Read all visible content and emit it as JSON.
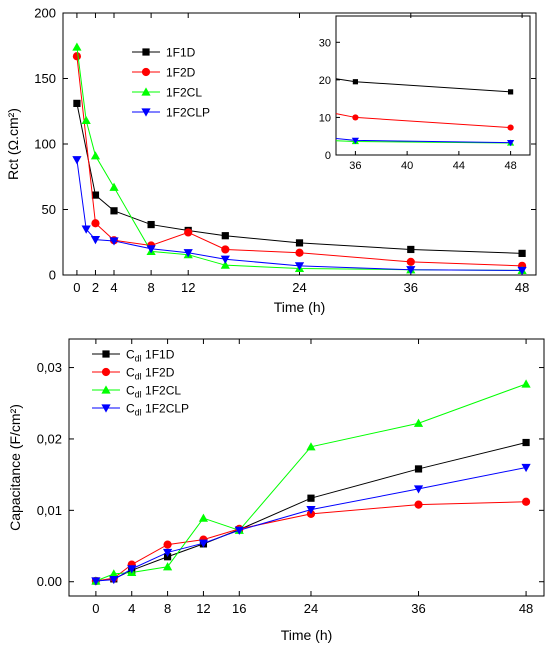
{
  "chart_data": [
    {
      "type": "line",
      "xlabel": "Time (h)",
      "ylabel": "Rct (Ω.cm²)",
      "xlim": [
        -1.5,
        49.5
      ],
      "ylim": [
        0,
        200
      ],
      "xticks": [
        0,
        2,
        4,
        8,
        12,
        24,
        36,
        48
      ],
      "yticks": [
        0,
        50,
        100,
        150,
        200
      ],
      "legend_position": "top-left",
      "series": [
        {
          "name": "1F1D",
          "color": "#000000",
          "marker": "square",
          "x": [
            0,
            2,
            4,
            8,
            12,
            16,
            24,
            36,
            48
          ],
          "y": [
            131,
            61,
            49,
            38.5,
            34,
            30,
            24.5,
            19.5,
            16.5
          ]
        },
        {
          "name": "1F2D",
          "color": "#ff0000",
          "marker": "circle",
          "x": [
            0,
            2,
            4,
            8,
            12,
            16,
            24,
            36,
            48
          ],
          "y": [
            167,
            39.5,
            26.5,
            22.5,
            32.5,
            19.5,
            17,
            10,
            7
          ]
        },
        {
          "name": "1F2CL",
          "color": "#00ff00",
          "marker": "triangle-up",
          "x": [
            0,
            1,
            2,
            4,
            8,
            12,
            16,
            24,
            36,
            48
          ],
          "y": [
            174,
            118,
            91,
            67,
            18,
            15.5,
            7.5,
            5,
            4,
            3.5
          ]
        },
        {
          "name": "1F2CLP",
          "color": "#0000ff",
          "marker": "triangle-down",
          "x": [
            0,
            1,
            2,
            4,
            8,
            12,
            16,
            24,
            36,
            48
          ],
          "y": [
            88,
            35,
            27,
            26,
            20,
            17,
            12,
            7,
            4,
            3.5
          ]
        }
      ],
      "inset": {
        "xlim": [
          34.5,
          49.5
        ],
        "ylim": [
          0,
          37
        ],
        "xticks": [
          36,
          40,
          44,
          48
        ],
        "yticks": [
          0,
          10,
          20,
          30
        ],
        "series": [
          {
            "name": "1F1D",
            "x": [
              34.5,
              36,
              48
            ],
            "y": [
              20.3,
              19.5,
              16.8
            ]
          },
          {
            "name": "1F2D",
            "x": [
              34.5,
              36,
              48
            ],
            "y": [
              11,
              10,
              7.3
            ]
          },
          {
            "name": "1F2CL",
            "x": [
              34.5,
              36,
              48
            ],
            "y": [
              3.8,
              3.6,
              3.2
            ]
          },
          {
            "name": "1F2CLP",
            "x": [
              34.5,
              36,
              48
            ],
            "y": [
              4.4,
              3.9,
              3.3
            ]
          }
        ]
      }
    },
    {
      "type": "line",
      "xlabel": "Time (h)",
      "ylabel": "Capacitance (F/cm²)",
      "xlim": [
        -3,
        50
      ],
      "ylim": [
        -0.002,
        0.034
      ],
      "xticks": [
        0,
        4,
        8,
        12,
        16,
        24,
        36,
        48
      ],
      "yticks": [
        0.0,
        0.01,
        0.02,
        0.03
      ],
      "ytick_labels": [
        "0.00",
        "0,01",
        "0,02",
        "0,03"
      ],
      "legend_position": "top-left",
      "series": [
        {
          "name": "1F1D",
          "prefix": "C",
          "subscript": "dl",
          "color": "#000000",
          "marker": "square",
          "x": [
            0,
            2,
            4,
            8,
            12,
            16,
            24,
            36,
            48
          ],
          "y": [
            0.0001,
            0.0004,
            0.0016,
            0.0035,
            0.0053,
            0.0073,
            0.0117,
            0.0158,
            0.0195
          ]
        },
        {
          "name": "1F2D",
          "prefix": "C",
          "subscript": "dl",
          "color": "#ff0000",
          "marker": "circle",
          "x": [
            0,
            2,
            4,
            8,
            12,
            16,
            24,
            36,
            48
          ],
          "y": [
            0.0001,
            0.0005,
            0.0024,
            0.0052,
            0.0059,
            0.0074,
            0.0095,
            0.0108,
            0.0112
          ]
        },
        {
          "name": "1F2CL",
          "prefix": "C",
          "subscript": "dl",
          "color": "#00ff00",
          "marker": "triangle-up",
          "x": [
            0,
            2,
            4,
            8,
            12,
            16,
            24,
            36,
            48
          ],
          "y": [
            0.0001,
            0.0011,
            0.0013,
            0.0021,
            0.0089,
            0.0072,
            0.0189,
            0.0222,
            0.0277
          ]
        },
        {
          "name": "1F2CLP",
          "prefix": "C",
          "subscript": "dl",
          "color": "#0000ff",
          "marker": "triangle-down",
          "x": [
            0,
            2,
            4,
            8,
            12,
            16,
            24,
            36,
            48
          ],
          "y": [
            0.0001,
            0.0003,
            0.0018,
            0.0041,
            0.0054,
            0.0072,
            0.0101,
            0.013,
            0.016
          ]
        }
      ]
    }
  ]
}
